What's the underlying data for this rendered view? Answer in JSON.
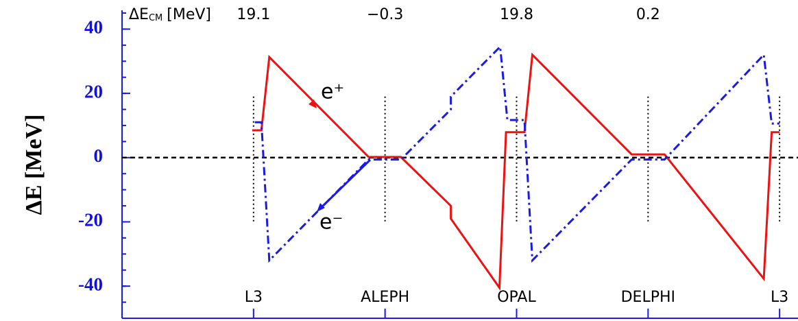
{
  "chart_data": {
    "type": "line",
    "y_label": "ΔE [MeV]",
    "header": {
      "label": "ΔE",
      "sub": "CM",
      "unit": "[MeV]"
    },
    "header_values": [
      19.1,
      -0.3,
      19.8,
      0.2
    ],
    "header_value_labels": [
      "19.1",
      "−0.3",
      "19.8",
      "0.2"
    ],
    "xlim": [
      -1,
      4.14
    ],
    "xticks": [
      {
        "value": 0,
        "label": "L3"
      },
      {
        "value": 1,
        "label": "ALEPH"
      },
      {
        "value": 2,
        "label": "OPAL"
      },
      {
        "value": 3,
        "label": "DELPHI"
      },
      {
        "value": 4,
        "label": "L3"
      }
    ],
    "ylim": [
      -50,
      45
    ],
    "yticks": [
      -40,
      -20,
      0,
      20,
      40
    ],
    "series": [
      {
        "name": "e⁺",
        "color": "#ee1111",
        "style": "solid",
        "x": [
          -0.01,
          0.06,
          0.12,
          0.875,
          1.12,
          1.5,
          1.5,
          1.87,
          1.92,
          2.06,
          2.12,
          2.875,
          3.125,
          3.88,
          3.94,
          4.0
        ],
        "values": [
          8.5,
          8.5,
          31.3,
          0.2,
          0.2,
          -15,
          -19,
          -40.5,
          7.9,
          7.9,
          32,
          1,
          1,
          -37.7,
          7.9,
          7.9
        ]
      },
      {
        "name": "e⁻",
        "color": "#1a1ae6",
        "style": "dashdot",
        "x": [
          0.01,
          0.06,
          0.12,
          0.875,
          1.12,
          1.5,
          1.5,
          1.875,
          1.93,
          2.06,
          2.12,
          2.875,
          3.125,
          3.88,
          3.94,
          4.0
        ],
        "values": [
          11,
          11,
          -32,
          -0.6,
          -0.6,
          15,
          19,
          34.5,
          11.7,
          11.7,
          -32,
          -0.6,
          -0.6,
          32,
          10.6,
          10.6
        ]
      }
    ]
  }
}
